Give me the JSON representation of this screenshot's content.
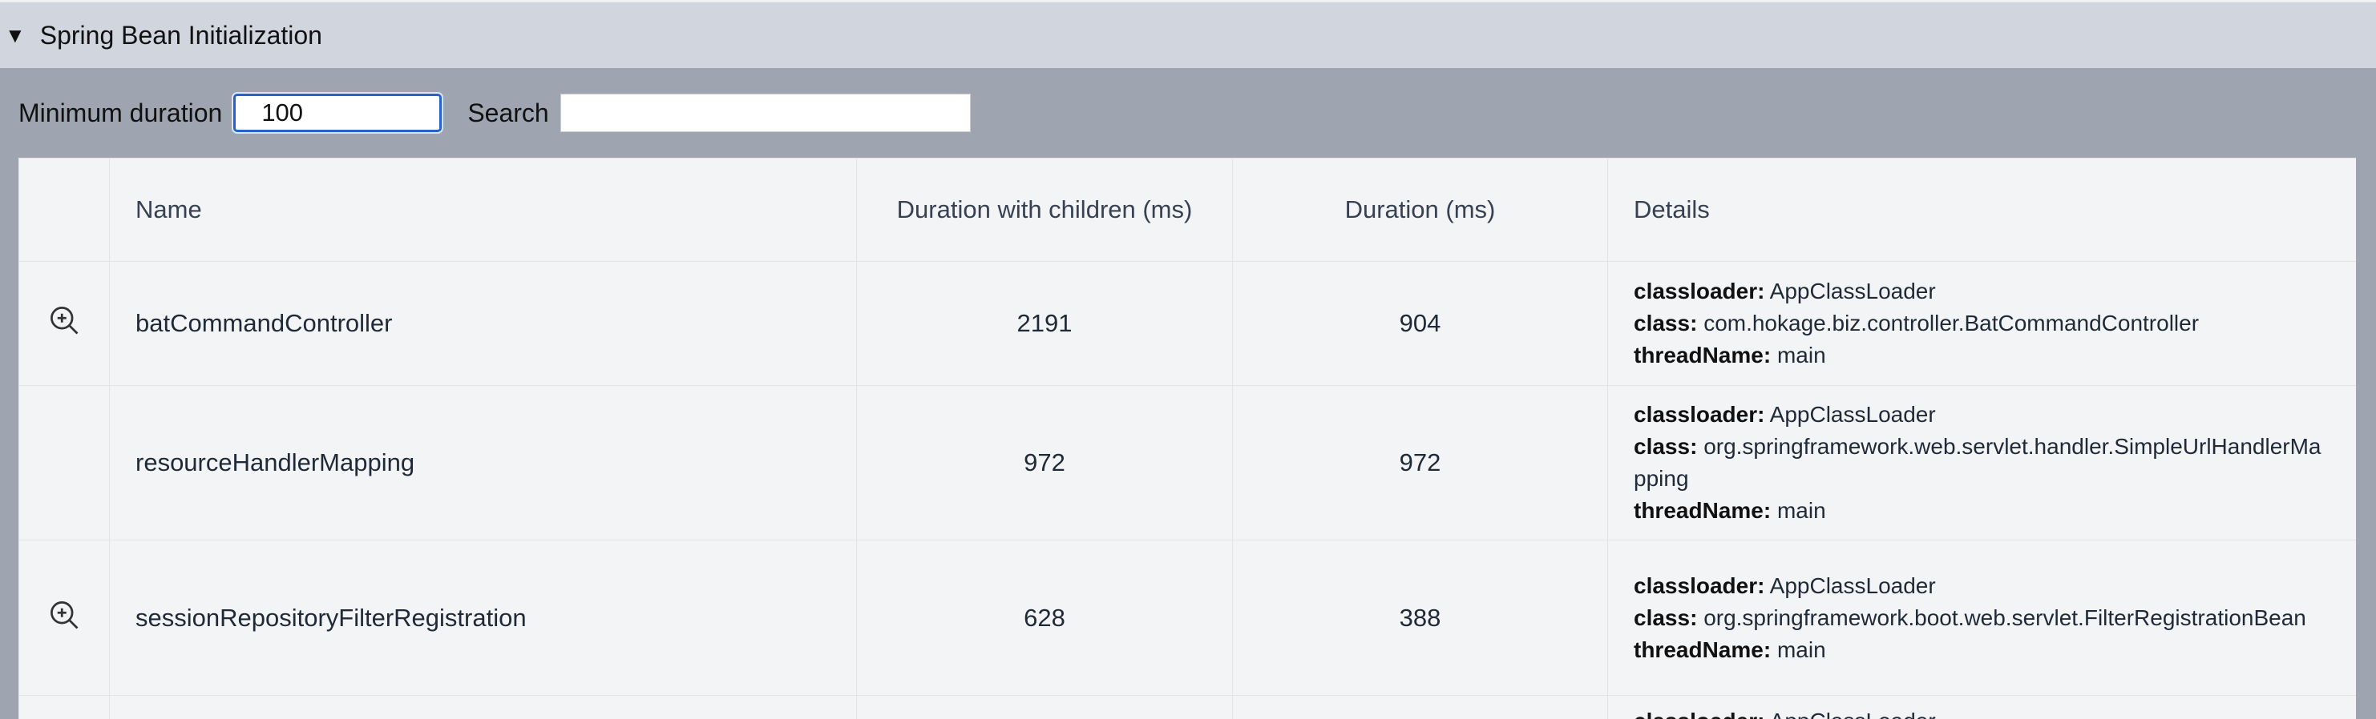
{
  "section": {
    "title": "Spring Bean Initialization"
  },
  "filters": {
    "min_duration_label": "Minimum duration",
    "min_duration_value": "100",
    "search_label": "Search"
  },
  "table": {
    "columns": [
      "Name",
      "Duration with children (ms)",
      "Duration (ms)",
      "Details"
    ],
    "rows": [
      {
        "zoom": true,
        "name": "batCommandController",
        "duration_with_children": 2191,
        "duration": 904,
        "details": [
          {
            "key": "classloader:",
            "value": "AppClassLoader"
          },
          {
            "key": "class:",
            "value": "com.hokage.biz.controller.BatCommandController"
          },
          {
            "key": "threadName:",
            "value": "main"
          }
        ]
      },
      {
        "zoom": false,
        "name": "resourceHandlerMapping",
        "duration_with_children": 972,
        "duration": 972,
        "details": [
          {
            "key": "classloader:",
            "value": "AppClassLoader"
          },
          {
            "key": "class:",
            "value": "org.springframework.web.servlet.handler.SimpleUrlHandlerMapping"
          },
          {
            "key": "threadName:",
            "value": "main"
          }
        ]
      },
      {
        "zoom": true,
        "name": "sessionRepositoryFilterRegistration",
        "duration_with_children": 628,
        "duration": 388,
        "details": [
          {
            "key": "classloader:",
            "value": "AppClassLoader"
          },
          {
            "key": "class:",
            "value": "org.springframework.boot.web.servlet.FilterRegistrationBean"
          },
          {
            "key": "threadName:",
            "value": "main"
          }
        ]
      },
      {
        "zoom": false,
        "details": [
          {
            "key": "classloader:",
            "value": "AppClassLoader"
          }
        ]
      }
    ]
  }
}
